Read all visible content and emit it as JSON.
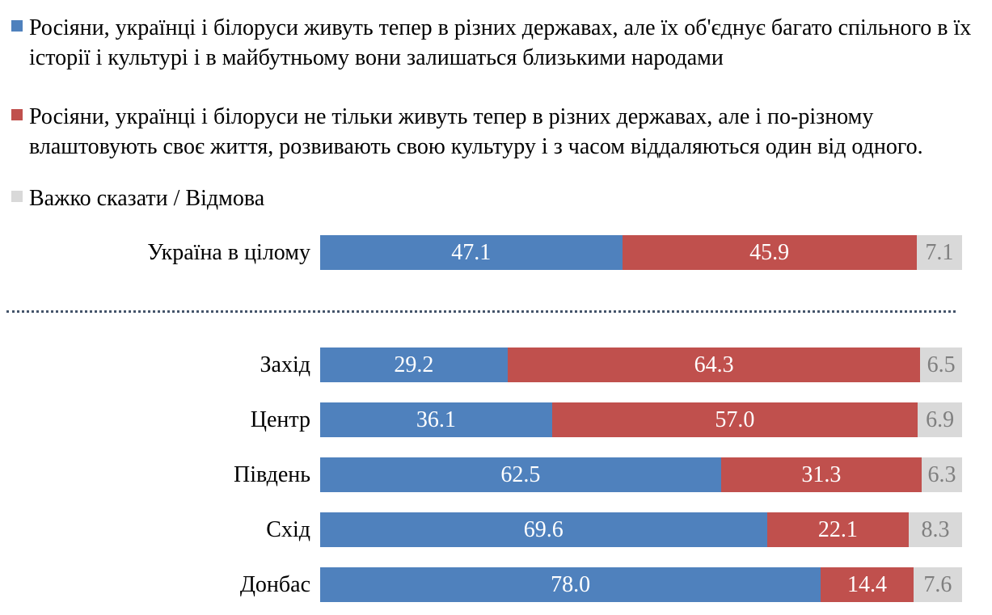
{
  "legend": {
    "items": [
      {
        "name": "remain-close-peoples",
        "label": "Росіяни, українці і білоруси живуть тепер в різних державах, але їх об'єднує багато спільного в їх історії і культурі і в майбутньому вони залишаться близькими народами",
        "color": "#4F81BD"
      },
      {
        "name": "drift-apart",
        "label": "Росіяни, українці і білоруси не тільки живуть тепер в різних державах, але і по-різному влаштовують своє життя, розвивають свою культуру і з часом віддаляються один від одного.",
        "color": "#C0504D"
      },
      {
        "name": "hard-to-say",
        "label": "Важко сказати / Відмова",
        "color": "#D9D9D9"
      }
    ]
  },
  "chart_data": {
    "type": "bar",
    "orientation": "horizontal",
    "stacked": true,
    "xlim": [
      0,
      100
    ],
    "grid": false,
    "legend_position": "top",
    "categories": [
      "Україна в цілому",
      "Захід",
      "Центр",
      "Південь",
      "Схід",
      "Донбас"
    ],
    "series": [
      {
        "name": "Росіяни, українці і білоруси живуть тепер в різних державах, але їх об'єднує багато спільного в їх історії і культурі і в майбутньому вони залишаться близькими народами",
        "color": "#4F81BD",
        "label_color": "#FFFFFF",
        "values": [
          47.1,
          29.2,
          36.1,
          62.5,
          69.6,
          78.0
        ]
      },
      {
        "name": "Росіяни, українці і білоруси не тільки живуть тепер в різних державах, але і по-різному влаштовують своє життя, розвивають свою культуру і з часом віддаляються один від одного.",
        "color": "#C0504D",
        "label_color": "#FFFFFF",
        "values": [
          45.9,
          64.3,
          57.0,
          31.3,
          22.1,
          14.4
        ]
      },
      {
        "name": "Важко сказати / Відмова",
        "color": "#D9D9D9",
        "label_color": "#7F7F7F",
        "values": [
          7.1,
          6.5,
          6.9,
          6.3,
          8.3,
          7.6
        ]
      }
    ],
    "divider_after_category_index": 0,
    "divider_color": "#44546A"
  }
}
